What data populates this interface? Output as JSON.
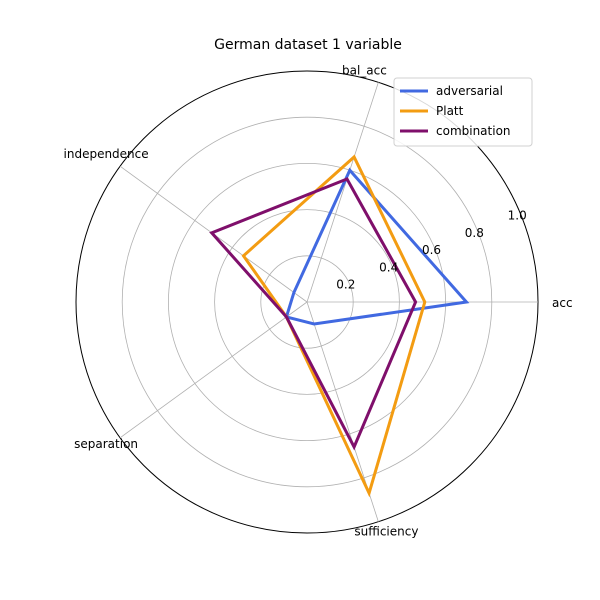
{
  "chart_data": {
    "type": "radar",
    "title": "German dataset 1 variable",
    "axes": [
      "acc",
      "bal_acc",
      "independence",
      "separation",
      "sufficiency"
    ],
    "rlim": [
      0,
      1.0
    ],
    "rticks": [
      0.2,
      0.4,
      0.6,
      0.8,
      1.0
    ],
    "rtick_labels": [
      "0.2",
      "0.4",
      "0.6",
      "0.8",
      "1.0"
    ],
    "grid": true,
    "legend_position": "top-right",
    "series": [
      {
        "name": "adversarial",
        "color": "#4169e1",
        "values": [
          0.69,
          0.6,
          0.07,
          0.11,
          0.1
        ]
      },
      {
        "name": "Platt",
        "color": "#f39c12",
        "values": [
          0.51,
          0.66,
          0.34,
          0.11,
          0.87
        ]
      },
      {
        "name": "combination",
        "color": "#7f0f6b",
        "values": [
          0.47,
          0.56,
          0.51,
          0.11,
          0.66
        ]
      }
    ]
  }
}
